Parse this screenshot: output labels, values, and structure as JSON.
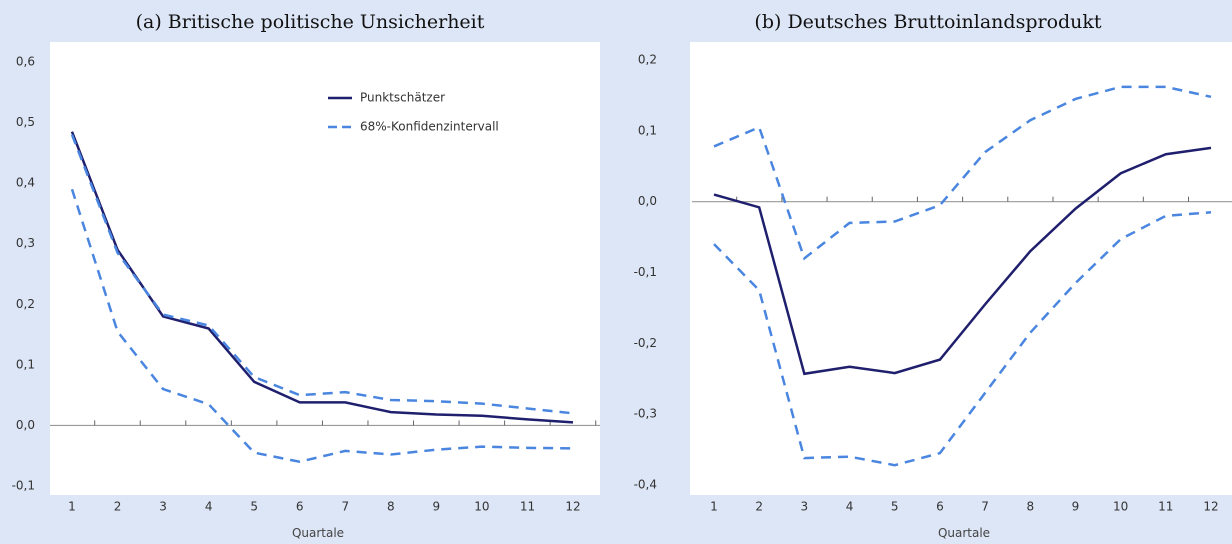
{
  "chart_data": [
    {
      "type": "line",
      "title": "(a) Britische politische Unsicherheit",
      "xlabel": "Quartale",
      "x": [
        1,
        2,
        3,
        4,
        5,
        6,
        7,
        8,
        9,
        10,
        11,
        12
      ],
      "xlim": [
        1,
        12
      ],
      "xticks": [
        1,
        2,
        3,
        4,
        5,
        6,
        7,
        8,
        9,
        10,
        11,
        12
      ],
      "ylim": [
        -0.1,
        0.6
      ],
      "yticks": [
        {
          "value": -0.1,
          "label": "-0,1"
        },
        {
          "value": 0,
          "label": "0,0"
        },
        {
          "value": 0.1,
          "label": "0,1"
        },
        {
          "value": 0.2,
          "label": "0,2"
        },
        {
          "value": 0.3,
          "label": "0,3"
        },
        {
          "value": 0.4,
          "label": "0,4"
        },
        {
          "value": 0.5,
          "label": "0,5"
        },
        {
          "value": 0.6,
          "label": "0,6"
        }
      ],
      "legend": "top-right",
      "series": [
        {
          "name": "Punktschätzer",
          "color": "#1f1f6e",
          "style": "solid",
          "values": [
            0.485,
            0.29,
            0.18,
            0.16,
            0.072,
            0.038,
            0.038,
            0.022,
            0.018,
            0.016,
            0.01,
            0.005
          ]
        },
        {
          "name": "68%-Konfidenzintervall",
          "color": "#4a86e0",
          "style": "dashed",
          "upper": [
            0.48,
            0.285,
            0.183,
            0.165,
            0.08,
            0.05,
            0.055,
            0.042,
            0.04,
            0.036,
            0.028,
            0.02
          ],
          "lower": [
            0.39,
            0.155,
            0.06,
            0.035,
            -0.045,
            -0.06,
            -0.042,
            -0.048,
            -0.04,
            -0.035,
            -0.037,
            -0.038
          ]
        }
      ]
    },
    {
      "type": "line",
      "title": "(b) Deutsches Bruttoinlandsprodukt",
      "xlabel": "Quartale",
      "x": [
        1,
        2,
        3,
        4,
        5,
        6,
        7,
        8,
        9,
        10,
        11,
        12
      ],
      "xlim": [
        1,
        12
      ],
      "xticks": [
        1,
        2,
        3,
        4,
        5,
        6,
        7,
        8,
        9,
        10,
        11,
        12
      ],
      "ylim": [
        -0.4,
        0.2
      ],
      "yticks": [
        {
          "value": -0.4,
          "label": "-0,4"
        },
        {
          "value": -0.3,
          "label": "-0,3"
        },
        {
          "value": -0.2,
          "label": "-0,2"
        },
        {
          "value": -0.1,
          "label": "-0,1"
        },
        {
          "value": 0,
          "label": "0,0"
        },
        {
          "value": 0.1,
          "label": "0,1"
        },
        {
          "value": 0.2,
          "label": "0,2"
        }
      ],
      "series": [
        {
          "color": "#1f1f6e",
          "style": "solid",
          "values": [
            0.01,
            -0.008,
            -0.243,
            -0.233,
            -0.242,
            -0.223,
            -0.145,
            -0.07,
            -0.01,
            0.04,
            0.067,
            0.076
          ]
        },
        {
          "color": "#4a86e0",
          "style": "dashed",
          "upper": [
            0.078,
            0.105,
            -0.08,
            -0.03,
            -0.028,
            -0.005,
            0.07,
            0.115,
            0.145,
            0.162,
            0.162,
            0.148
          ],
          "lower": [
            -0.06,
            -0.125,
            -0.362,
            -0.36,
            -0.372,
            -0.355,
            -0.27,
            -0.185,
            -0.115,
            -0.053,
            -0.02,
            -0.015
          ]
        }
      ]
    }
  ]
}
